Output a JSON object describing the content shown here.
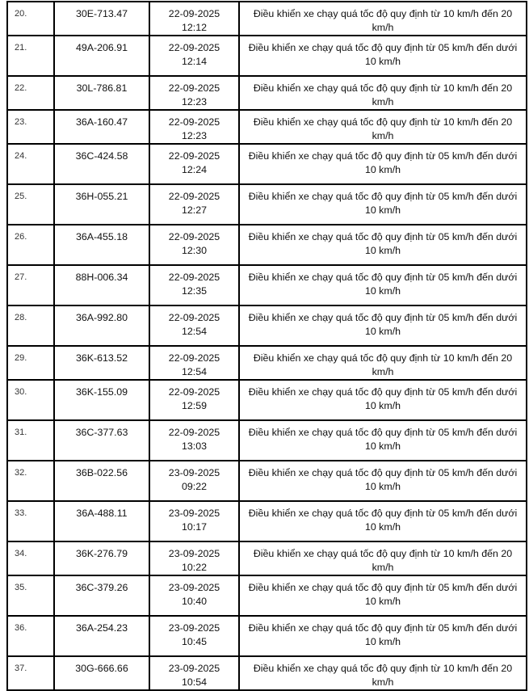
{
  "rows": [
    {
      "no": "20.",
      "plate": "30E-713.47",
      "time": "22-09-2025 12:12",
      "violation": "Điều khiển xe chạy quá tốc độ quy định từ 10 km/h đến 20 km/h"
    },
    {
      "no": "21.",
      "plate": "49A-206.91",
      "time": "22-09-2025 12:14",
      "violation": "Điều khiển xe chạy quá tốc độ quy định từ 05 km/h đến dưới 10 km/h"
    },
    {
      "no": "22.",
      "plate": "30L-786.81",
      "time": "22-09-2025 12:23",
      "violation": "Điều khiển xe chạy quá tốc độ quy định từ 10 km/h đến 20 km/h"
    },
    {
      "no": "23.",
      "plate": "36A-160.47",
      "time": "22-09-2025 12:23",
      "violation": "Điều khiển xe chạy quá tốc độ quy định từ 10 km/h đến 20 km/h"
    },
    {
      "no": "24.",
      "plate": "36C-424.58",
      "time": "22-09-2025 12:24",
      "violation": "Điều khiển xe chạy quá tốc độ quy định từ 05 km/h đến dưới 10 km/h"
    },
    {
      "no": "25.",
      "plate": "36H-055.21",
      "time": "22-09-2025 12:27",
      "violation": "Điều khiển xe chạy quá tốc độ quy định từ 05 km/h đến dưới 10 km/h"
    },
    {
      "no": "26.",
      "plate": "36A-455.18",
      "time": "22-09-2025 12:30",
      "violation": "Điều khiển xe chạy quá tốc độ quy định từ 05 km/h đến dưới 10 km/h"
    },
    {
      "no": "27.",
      "plate": "88H-006.34",
      "time": "22-09-2025 12:35",
      "violation": "Điều khiển xe chạy quá tốc độ quy định từ 05 km/h đến dưới 10 km/h"
    },
    {
      "no": "28.",
      "plate": "36A-992.80",
      "time": "22-09-2025 12:54",
      "violation": "Điều khiển xe chạy quá tốc độ quy định từ 05 km/h đến dưới 10 km/h"
    },
    {
      "no": "29.",
      "plate": "36K-613.52",
      "time": "22-09-2025 12:54",
      "violation": "Điều khiển xe chạy quá tốc độ quy định từ 10 km/h đến 20 km/h"
    },
    {
      "no": "30.",
      "plate": "36K-155.09",
      "time": "22-09-2025 12:59",
      "violation": "Điều khiển xe chạy quá tốc độ quy định từ 05 km/h đến dưới 10 km/h"
    },
    {
      "no": "31.",
      "plate": "36C-377.63",
      "time": "22-09-2025 13:03",
      "violation": "Điều khiển xe chạy quá tốc độ quy định từ 05 km/h đến dưới 10 km/h"
    },
    {
      "no": "32.",
      "plate": "36B-022.56",
      "time": "23-09-2025 09:22",
      "violation": "Điều khiển xe chạy quá tốc độ quy định từ 05 km/h đến dưới 10 km/h"
    },
    {
      "no": "33.",
      "plate": "36A-488.11",
      "time": "23-09-2025 10:17",
      "violation": "Điều khiển xe chạy quá tốc độ quy định từ 05 km/h đến dưới 10 km/h"
    },
    {
      "no": "34.",
      "plate": "36K-276.79",
      "time": "23-09-2025 10:22",
      "violation": "Điều khiển xe chạy quá tốc độ quy định từ 10 km/h đến 20 km/h"
    },
    {
      "no": "35.",
      "plate": "36C-379.26",
      "time": "23-09-2025 10:40",
      "violation": "Điều khiển xe chạy quá tốc độ quy định từ 05 km/h đến dưới 10 km/h"
    },
    {
      "no": "36.",
      "plate": "36A-254.23",
      "time": "23-09-2025 10:45",
      "violation": "Điều khiển xe chạy quá tốc độ quy định từ 05 km/h đến dưới 10 km/h"
    },
    {
      "no": "37.",
      "plate": "30G-666.66",
      "time": "23-09-2025 10:54",
      "violation": "Điều khiển xe chạy quá tốc độ quy định từ 10 km/h đến 20 km/h"
    }
  ]
}
